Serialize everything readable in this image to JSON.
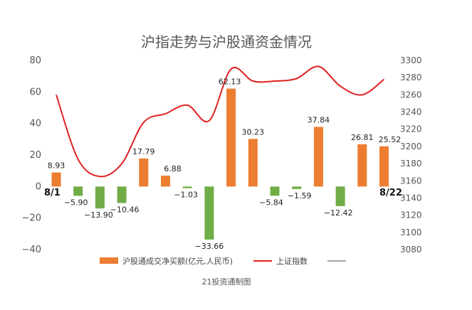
{
  "chart_data": {
    "type": "bar+line",
    "title": "沪指走势与沪股通资金情况",
    "credit": "21投资通制图",
    "x_start_label": "8/1",
    "x_end_label": "8/22",
    "bar_series": {
      "name": "沪股通成交净买额(亿元,人民币)",
      "color": "#ed7d31",
      "negative_color": "#70ad47",
      "values": [
        8.93,
        -5.9,
        -13.9,
        -10.46,
        17.79,
        6.88,
        -1.03,
        -33.66,
        62.13,
        30.23,
        -5.84,
        -1.59,
        37.84,
        -12.42,
        26.81,
        25.52
      ],
      "labels": [
        "8.93",
        "−5.90",
        "−13.90",
        "−10.46",
        "17.79",
        "6.88",
        "−1.03",
        "−33.66",
        "62.13",
        "30.23",
        "−5.84",
        "−1.59",
        "37.84",
        "−12.42",
        "26.81",
        "25.52"
      ]
    },
    "line_series": {
      "name": "上证指数",
      "color": "#e02020",
      "values": [
        3260,
        3185,
        3165,
        3180,
        3228,
        3238,
        3248,
        3230,
        3290,
        3276,
        3276,
        3279,
        3293,
        3270,
        3260,
        3278
      ]
    },
    "extra_legend": {
      "name": "",
      "color": "#a6a6a6"
    },
    "y_left": {
      "range": [
        -40,
        80
      ],
      "ticks": [
        80,
        60,
        40,
        20,
        0,
        -20,
        -40
      ],
      "tick_labels": [
        "80",
        "60",
        "40",
        "20",
        "0",
        "−20",
        "−40"
      ]
    },
    "y_right": {
      "range": [
        3080,
        3300
      ],
      "ticks": [
        3300,
        3280,
        3260,
        3240,
        3220,
        3200,
        3180,
        3160,
        3140,
        3120,
        3100,
        3080
      ],
      "tick_labels": [
        "3300",
        "3280",
        "3260",
        "3240",
        "3220",
        "3200",
        "3180",
        "3160",
        "3140",
        "3120",
        "3100",
        "3080"
      ]
    },
    "grid": false,
    "legend_position": "bottom"
  }
}
